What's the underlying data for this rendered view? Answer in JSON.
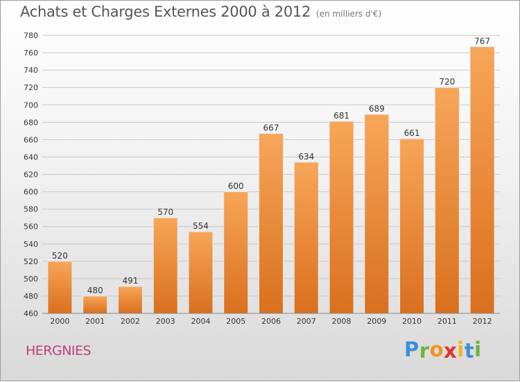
{
  "title": "Achats et Charges Externes 2000 à 2012",
  "subtitle": "(en milliers d'€)",
  "place": "HERGNIES",
  "logo": {
    "letters": [
      "P",
      "r",
      "o",
      "x",
      "i",
      "t",
      "i"
    ],
    "colors": [
      "#3a8fd8",
      "#6db33f",
      "#f39323",
      "#e0332b",
      "#f3b323",
      "#3a8fd8",
      "#6db33f"
    ]
  },
  "colors": {
    "bar_top": "#f7a658",
    "bar_bottom": "#d9701e",
    "grid": "#c8c8c8",
    "axis_text": "#333333"
  },
  "chart_data": {
    "type": "bar",
    "categories": [
      "2000",
      "2001",
      "2002",
      "2003",
      "2004",
      "2005",
      "2006",
      "2007",
      "2008",
      "2009",
      "2010",
      "2011",
      "2012"
    ],
    "values": [
      520,
      480,
      491,
      570,
      554,
      600,
      667,
      634,
      681,
      689,
      661,
      720,
      767
    ],
    "ylim": [
      460,
      780
    ],
    "yticks": [
      460,
      480,
      500,
      520,
      540,
      560,
      580,
      600,
      620,
      640,
      660,
      680,
      700,
      720,
      740,
      760,
      780
    ],
    "grid": true,
    "data_labels": true
  }
}
